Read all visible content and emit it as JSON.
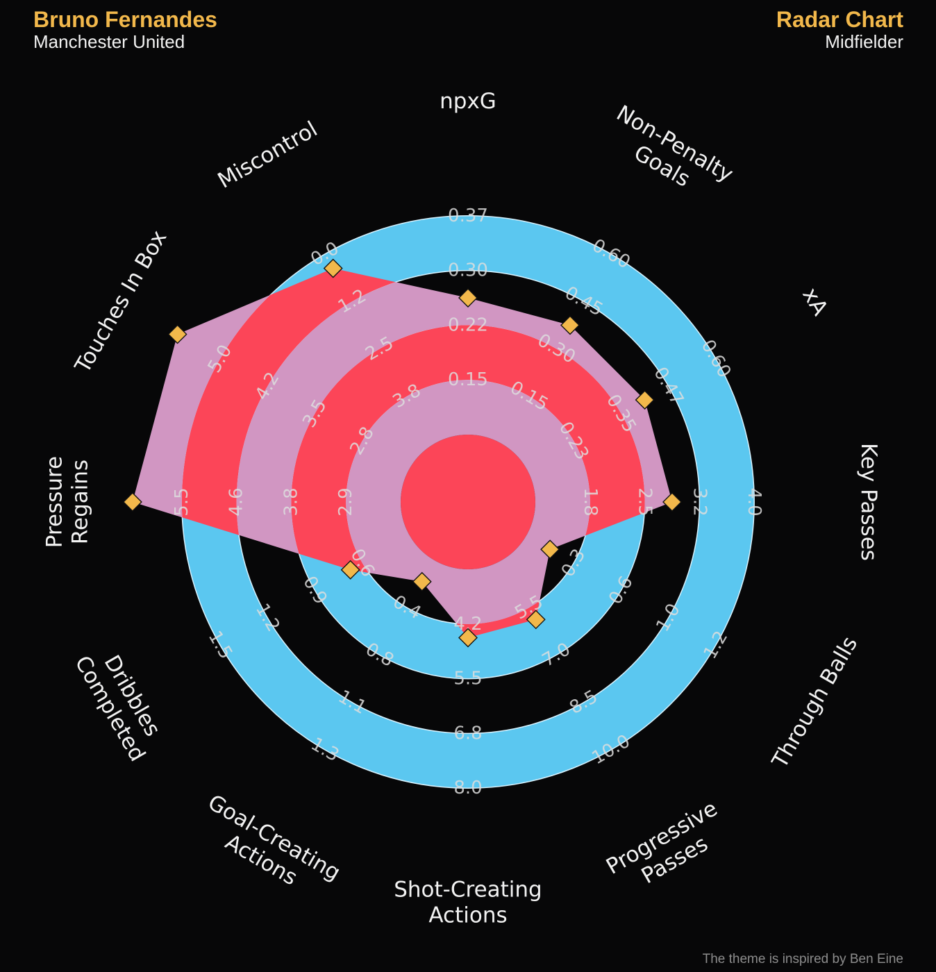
{
  "header": {
    "player_name": "Bruno Fernandes",
    "team": "Manchester United",
    "chart_title": "Radar Chart",
    "position": "Midfielder"
  },
  "credit": "The theme is inspired by Ben Eine",
  "colors": {
    "background": "#070708",
    "ring": "#5bc7f0",
    "ring_edge": "#d8f3ff",
    "accent": "#f2b84b",
    "player_fill": "#fc4558",
    "player_fill_overlay": "#d196c2",
    "marker": "#f2b84b",
    "text": "#f2f2f2",
    "tick_text": "#dddddd"
  },
  "chart_data": {
    "type": "radar",
    "title": "Radar Chart",
    "ring_count": 5,
    "parameters": [
      {
        "label": "npxG",
        "ticks": [
          "0.15",
          "0.22",
          "0.30",
          "0.37"
        ],
        "value": 0.22,
        "ring_fraction": 0.5
      },
      {
        "label": "Non-Penalty Goals",
        "ticks": [
          "0.15",
          "0.30",
          "0.45",
          "0.60"
        ],
        "value": 0.3,
        "ring_fraction": 0.5
      },
      {
        "label": "xA",
        "ticks": [
          "0.23",
          "0.35",
          "0.47",
          "0.60"
        ],
        "value": 0.35,
        "ring_fraction": 0.5
      },
      {
        "label": "Key Passes",
        "ticks": [
          "1.8",
          "2.5",
          "3.2",
          "4.0"
        ],
        "value": 2.5,
        "ring_fraction": 0.5
      },
      {
        "label": "Through Balls",
        "ticks": [
          "0.3",
          "0.6",
          "1.0",
          "1.2"
        ],
        "value": 0.2,
        "ring_fraction": 0.1
      },
      {
        "label": "Progressive Passes",
        "ticks": [
          "5.5",
          "7.0",
          "8.5",
          "10.0"
        ],
        "value": 5.5,
        "ring_fraction": 0.25
      },
      {
        "label": "Shot-Creating Actions",
        "ticks": [
          "4.2",
          "5.5",
          "6.8",
          "8.0"
        ],
        "value": 4.2,
        "ring_fraction": 0.25
      },
      {
        "label": "Goal-Creating Actions",
        "ticks": [
          "0.4",
          "0.8",
          "1.1",
          "1.3"
        ],
        "value": 0.2,
        "ring_fraction": 0.09
      },
      {
        "label": "Dribbles Completed",
        "ticks": [
          "0.6",
          "0.9",
          "1.2",
          "1.5"
        ],
        "value": 0.6,
        "ring_fraction": 0.25
      },
      {
        "label": "Pressure Regains",
        "ticks": [
          "2.9",
          "3.8",
          "4.6",
          "5.5"
        ],
        "value": 5.5,
        "ring_fraction": 0.98
      },
      {
        "label": "Touches In Box",
        "ticks": [
          "2.8",
          "3.5",
          "4.2",
          "5.0"
        ],
        "value": 5.0,
        "ring_fraction": 0.98
      },
      {
        "label": "Miscontrol",
        "ticks": [
          "3.8",
          "2.5",
          "1.2",
          "0.0"
        ],
        "value": 1.2,
        "ring_fraction": 0.74
      }
    ]
  }
}
